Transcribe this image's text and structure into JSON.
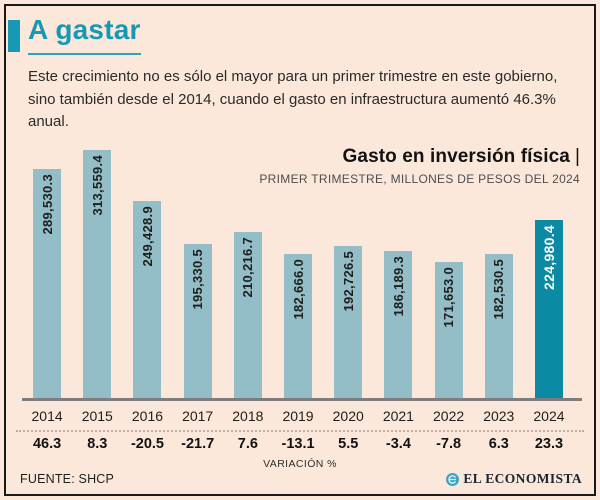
{
  "header": {
    "title": "A gastar"
  },
  "intro": "Este crecimiento no es sólo el mayor para un primer trimestre en este gobierno, sino también desde el 2014, cuando el gasto en infraestructura aumentó 46.3% anual.",
  "chart": {
    "title": "Gasto en inversión física",
    "title_divider": "|",
    "subtitle": "PRIMER TRIMESTRE, MILLONES DE PESOS DEL 2024",
    "variation_caption": "VARIACIÓN %",
    "source": "FUENTE: SHCP",
    "brand": "EL ECONOMISTA"
  },
  "chart_data": {
    "type": "bar",
    "title": "Gasto en inversión física",
    "subtitle": "Primer trimestre, millones de pesos del 2024",
    "categories": [
      "2014",
      "2015",
      "2016",
      "2017",
      "2018",
      "2019",
      "2020",
      "2021",
      "2022",
      "2023",
      "2024"
    ],
    "series": [
      {
        "name": "Gasto en inversión física (millones de pesos del 2024)",
        "values": [
          289530.3,
          313559.4,
          249428.9,
          195330.5,
          210216.7,
          182666.0,
          192726.5,
          186189.3,
          171653.0,
          182530.5,
          224980.4
        ]
      },
      {
        "name": "Variación %",
        "values": [
          46.3,
          8.3,
          -20.5,
          -21.7,
          7.6,
          -13.1,
          5.5,
          -3.4,
          -7.8,
          6.3,
          23.3
        ]
      }
    ],
    "value_labels": [
      "289,530.3",
      "313,559.4",
      "249,428.9",
      "195,330.5",
      "210,216.7",
      "182,666.0",
      "192,726.5",
      "186,189.3",
      "171,653.0",
      "182,530.5",
      "224,980.4"
    ],
    "highlight_index": 10,
    "ylim": [
      0,
      313559.4
    ],
    "grid": false,
    "legend": false,
    "colors": {
      "bar": "#93bec8",
      "highlight_bar": "#0b8ba3",
      "accent": "#1799b4",
      "background": "#fce8da"
    }
  }
}
